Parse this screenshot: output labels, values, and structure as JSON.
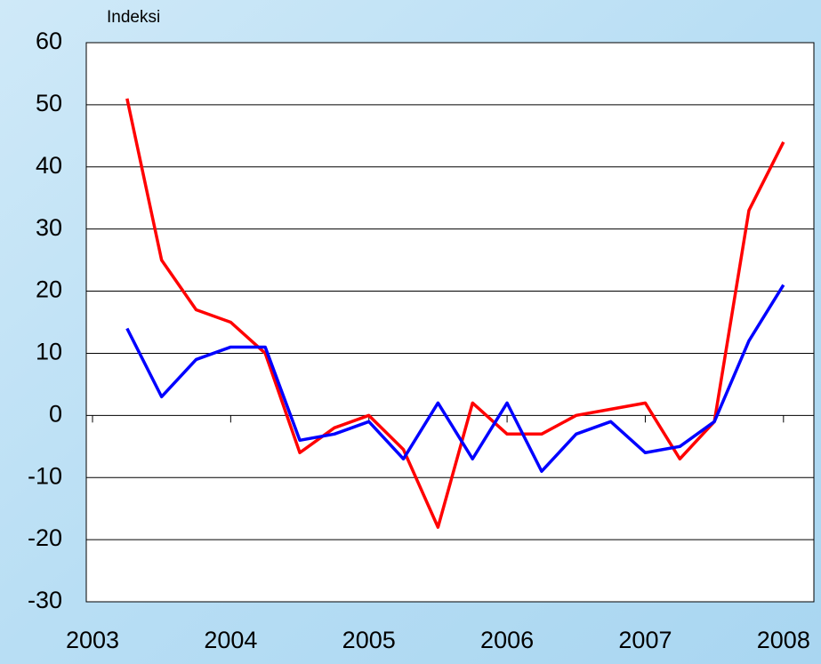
{
  "chart_data": {
    "type": "line",
    "ylabel": "Indeksi",
    "x": [
      2003.25,
      2003.5,
      2003.75,
      2004.0,
      2004.25,
      2004.5,
      2004.75,
      2005.0,
      2005.25,
      2005.5,
      2005.75,
      2006.0,
      2006.25,
      2006.5,
      2006.75,
      2007.0,
      2007.25,
      2007.5,
      2007.75,
      2008.0
    ],
    "series": [
      {
        "color": "#ff0000",
        "values": [
          51,
          25,
          17,
          15,
          10,
          -6,
          -2,
          0,
          -5.5,
          -18,
          2,
          -3,
          -3,
          0,
          1,
          2,
          -7,
          -1,
          33,
          44
        ]
      },
      {
        "color": "#0000ff",
        "values": [
          14,
          3,
          9,
          11,
          11,
          -4,
          -3,
          -1,
          -7,
          2,
          -7,
          2,
          -9,
          -3,
          -1,
          -6,
          -5,
          -1,
          12,
          21
        ]
      }
    ],
    "xlim": [
      2002.955,
      2008.22
    ],
    "xticks": [
      2003,
      2004,
      2005,
      2006,
      2007,
      2008
    ],
    "ylim": [
      -30,
      60
    ],
    "yticks": [
      -30,
      -20,
      -10,
      0,
      10,
      20,
      30,
      40,
      50,
      60
    ],
    "grid": true
  }
}
